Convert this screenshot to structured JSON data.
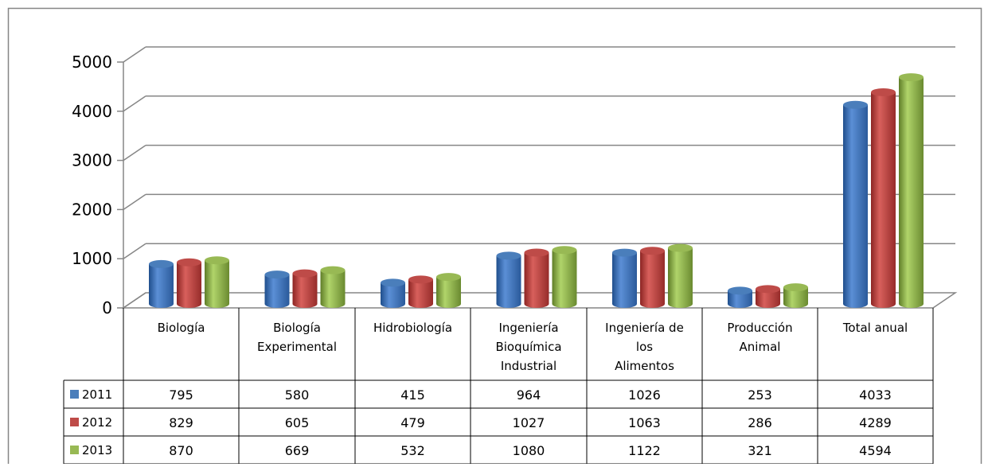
{
  "chart_data": {
    "type": "bar",
    "title": "",
    "xlabel": "",
    "ylabel": "",
    "ylim": [
      0,
      5000
    ],
    "yticks": [
      "0",
      "1000",
      "2000",
      "3000",
      "4000",
      "5000"
    ],
    "grid": true,
    "legend": "data-table-left",
    "categories": [
      [
        "Biología"
      ],
      [
        "Biología",
        "Experimental"
      ],
      [
        "Hidrobiología"
      ],
      [
        "Ingeniería",
        "Bioquímica",
        "Industrial"
      ],
      [
        "Ingeniería de",
        "los",
        "Alimentos"
      ],
      [
        "Producción",
        "Animal"
      ],
      [
        "Total anual"
      ]
    ],
    "series": [
      {
        "name": "2011",
        "color": "#4a7ebb",
        "values": [
          795,
          580,
          415,
          964,
          1026,
          253,
          4033
        ]
      },
      {
        "name": "2012",
        "color": "#be4b48",
        "values": [
          829,
          605,
          479,
          1027,
          1063,
          286,
          4289
        ]
      },
      {
        "name": "2013",
        "color": "#98b954",
        "values": [
          870,
          669,
          532,
          1080,
          1122,
          321,
          4594
        ]
      }
    ]
  }
}
